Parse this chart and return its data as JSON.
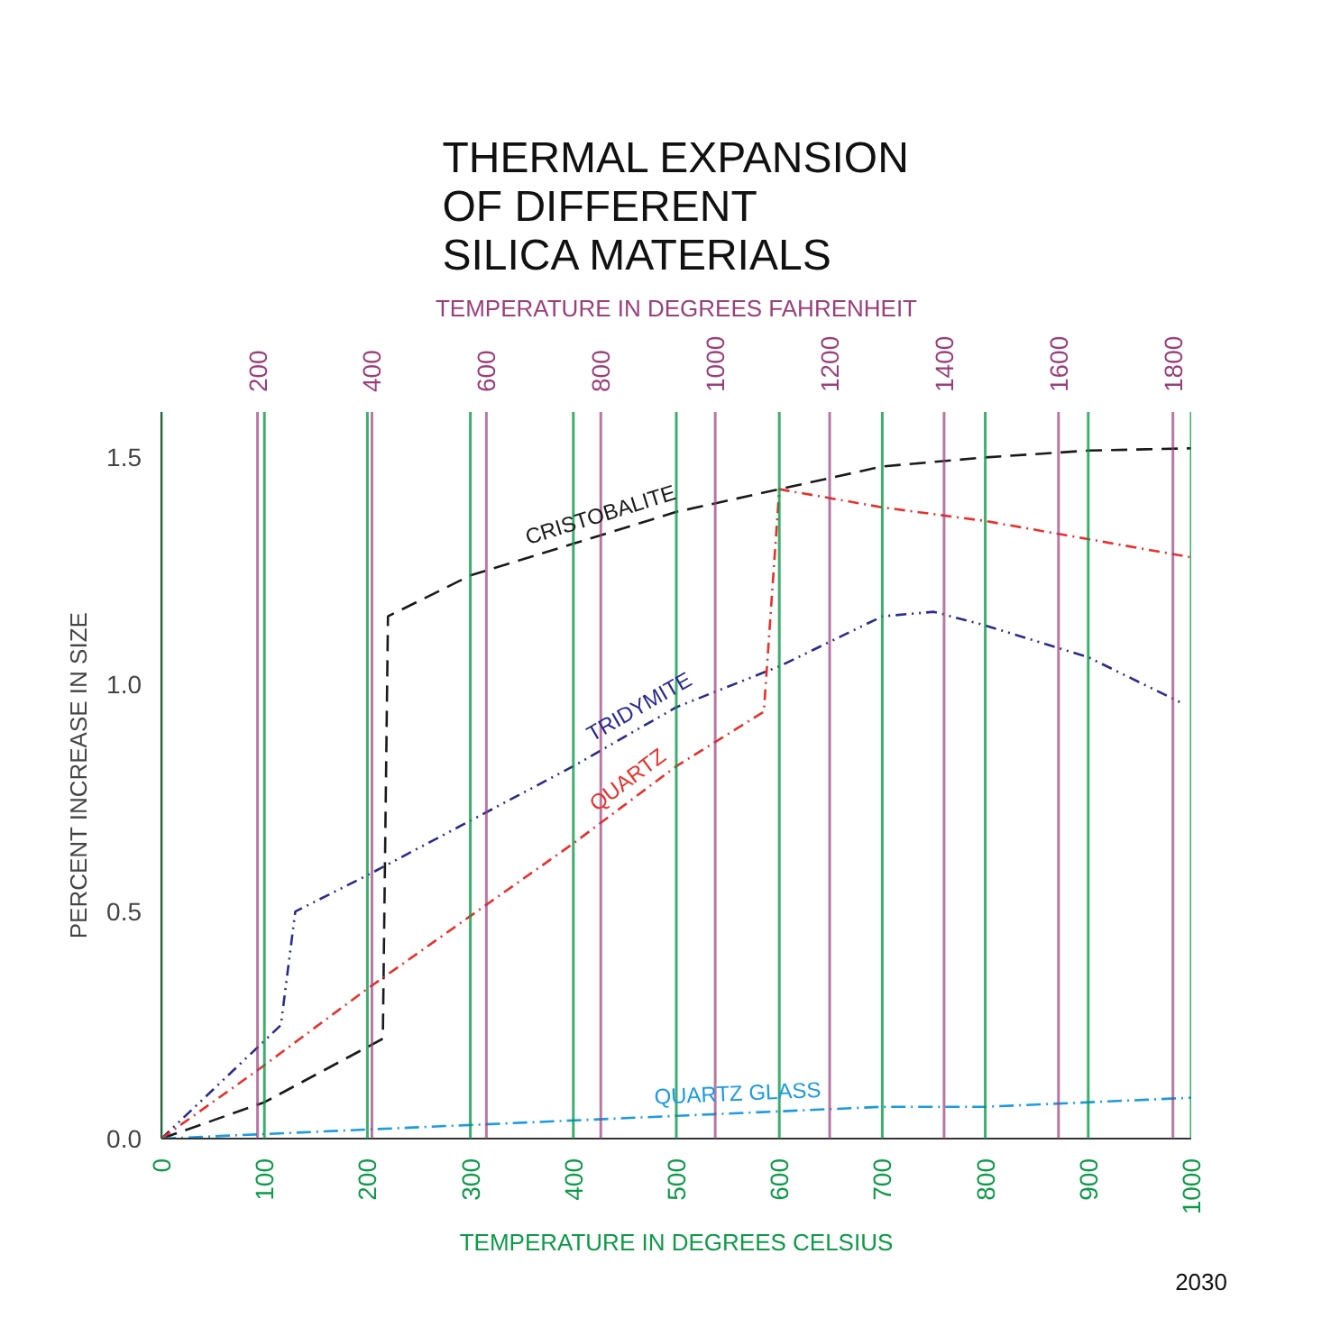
{
  "chart_data": {
    "type": "line",
    "title": "THERMAL EXPANSION\nOF DIFFERENT\nSILICA MATERIALS",
    "xlabel": "TEMPERATURE IN DEGREES CELSIUS",
    "x2label": "TEMPERATURE IN DEGREES FAHRENHEIT",
    "ylabel": "PERCENT INCREASE IN SIZE",
    "xlim": [
      0,
      1000
    ],
    "xticks": [
      0,
      100,
      200,
      300,
      400,
      500,
      600,
      700,
      800,
      900,
      1000
    ],
    "x2lim": [
      32,
      1832
    ],
    "x2ticks": [
      200,
      400,
      600,
      800,
      1000,
      1200,
      1400,
      1600,
      1800
    ],
    "ylim": [
      0,
      1.6
    ],
    "yticks": [
      {
        "value": 0,
        "label": "0.0"
      },
      {
        "value": 0.5,
        "label": "0.5"
      },
      {
        "value": 1,
        "label": "1.0"
      },
      {
        "value": 1.5,
        "label": "1.5"
      }
    ],
    "grid": "x",
    "marker": "none",
    "series": [
      {
        "name": "CRISTOBALITE",
        "color": "#1a1a1a",
        "line_style": "dashed",
        "x": [
          0,
          100,
          215,
          220,
          300,
          400,
          500,
          600,
          700,
          800,
          900,
          1000
        ],
        "values": [
          0,
          0.08,
          0.22,
          1.15,
          1.24,
          1.31,
          1.38,
          1.43,
          1.48,
          1.5,
          1.515,
          1.52
        ]
      },
      {
        "name": "TRIDYMITE",
        "color": "#2b2b8c",
        "line_style": "dashed",
        "x": [
          0,
          93,
          116,
          130,
          200,
          300,
          400,
          500,
          600,
          700,
          750,
          800,
          900,
          990
        ],
        "values": [
          0,
          0.2,
          0.25,
          0.5,
          0.58,
          0.7,
          0.82,
          0.95,
          1.04,
          1.15,
          1.16,
          1.13,
          1.06,
          0.96
        ]
      },
      {
        "name": "QUARTZ",
        "color": "#e8302a",
        "line_style": "dashed",
        "x": [
          0,
          93,
          200,
          300,
          400,
          500,
          585,
          600,
          700,
          800,
          900,
          1000
        ],
        "values": [
          0,
          0.15,
          0.33,
          0.49,
          0.65,
          0.82,
          0.94,
          1.43,
          1.39,
          1.36,
          1.32,
          1.28
        ]
      },
      {
        "name": "QUARTZ GLASS",
        "color": "#1b9be0",
        "line_style": "dashed",
        "x": [
          0,
          100,
          300,
          500,
          700,
          800,
          1000
        ],
        "values": [
          0,
          0.01,
          0.03,
          0.05,
          0.07,
          0.07,
          0.09
        ]
      }
    ],
    "annotations": [
      "2030"
    ]
  }
}
